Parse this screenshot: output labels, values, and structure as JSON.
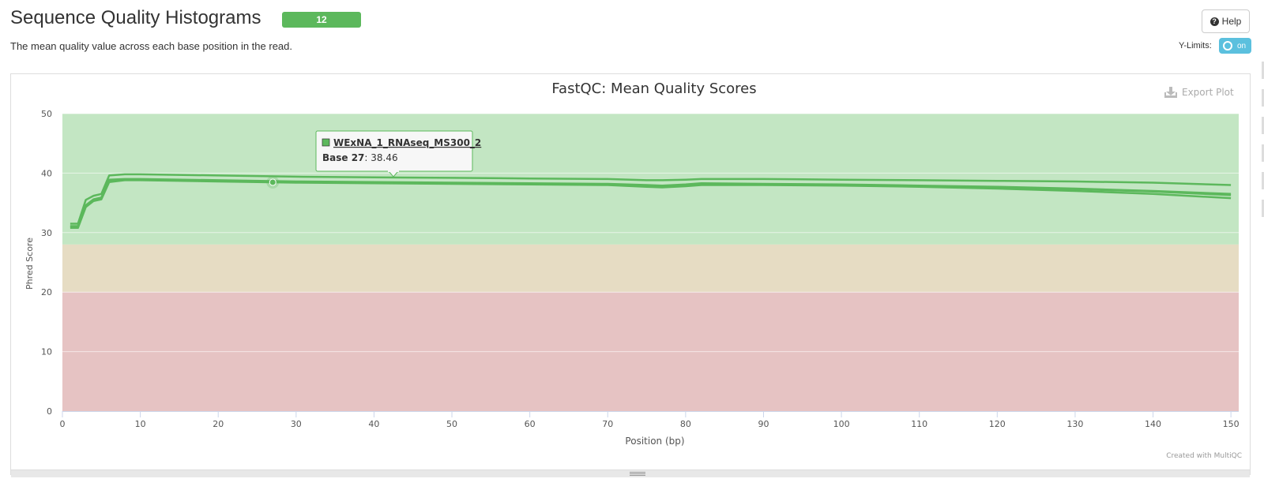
{
  "header": {
    "title": "Sequence Quality Histograms",
    "badge": "12",
    "description": "The mean quality value across each base position in the read.",
    "help_label": "Help",
    "ylimits_label": "Y-Limits:",
    "ylimits_toggle": "on"
  },
  "plot": {
    "export_label": "Export Plot",
    "credit": "Created with MultiQC"
  },
  "tooltip": {
    "sample": "WExNA_1_RNAseq_MS300_2",
    "base_label": "Base 27",
    "value_text": ": 38.46"
  },
  "colors": {
    "accent": "#5cb85c",
    "zone_good": "#c3e6c3",
    "zone_warn": "#e6dcc3",
    "zone_fail": "#e6c3c3",
    "toggle": "#5bc0de"
  },
  "chart_data": {
    "type": "line",
    "title": "FastQC: Mean Quality Scores",
    "xlabel": "Position (bp)",
    "ylabel": "Phred Score",
    "xlim": [
      0,
      151
    ],
    "ylim": [
      0,
      50
    ],
    "x_ticks": [
      0,
      10,
      20,
      30,
      40,
      50,
      60,
      70,
      80,
      90,
      100,
      110,
      120,
      130,
      140,
      150
    ],
    "y_ticks": [
      0,
      10,
      20,
      30,
      40,
      50
    ],
    "bands": [
      {
        "from": 28,
        "to": 50,
        "color": "#c3e6c3"
      },
      {
        "from": 20,
        "to": 28,
        "color": "#e6dcc3"
      },
      {
        "from": 0,
        "to": 20,
        "color": "#e6c3c3"
      }
    ],
    "highlight": {
      "x": 27,
      "y": 38.46
    },
    "series": [
      {
        "color": "#5cb85c",
        "x": [
          1,
          2,
          3,
          4,
          5,
          6,
          8,
          10,
          20,
          30,
          40,
          50,
          60,
          70,
          75,
          77,
          80,
          82,
          90,
          100,
          110,
          120,
          130,
          140,
          150
        ],
        "y": [
          31.5,
          31.5,
          35.5,
          36.2,
          36.5,
          39.6,
          39.8,
          39.8,
          39.6,
          39.4,
          39.3,
          39.2,
          39.1,
          39.0,
          38.8,
          38.8,
          38.9,
          39.0,
          39.0,
          38.9,
          38.8,
          38.7,
          38.6,
          38.4,
          38.0
        ]
      },
      {
        "color": "#5cb85c",
        "x": [
          1,
          2,
          3,
          4,
          5,
          6,
          8,
          10,
          20,
          30,
          40,
          50,
          60,
          70,
          75,
          77,
          80,
          82,
          90,
          100,
          110,
          120,
          130,
          140,
          150
        ],
        "y": [
          31.0,
          31.0,
          34.5,
          35.5,
          35.8,
          38.7,
          38.9,
          38.9,
          38.7,
          38.5,
          38.4,
          38.3,
          38.2,
          38.1,
          37.9,
          37.8,
          38.0,
          38.2,
          38.1,
          38.0,
          37.8,
          37.6,
          37.3,
          36.9,
          36.3
        ]
      },
      {
        "color": "#5cb85c",
        "x": [
          1,
          2,
          3,
          4,
          5,
          6,
          8,
          10,
          20,
          30,
          40,
          50,
          60,
          70,
          75,
          77,
          80,
          82,
          90,
          100,
          110,
          120,
          130,
          140,
          150
        ],
        "y": [
          30.8,
          30.8,
          34.3,
          35.3,
          35.6,
          38.5,
          38.8,
          38.8,
          38.6,
          38.4,
          38.3,
          38.2,
          38.1,
          38.0,
          37.7,
          37.6,
          37.8,
          38.0,
          38.0,
          37.9,
          37.7,
          37.4,
          37.0,
          36.5,
          35.8
        ]
      },
      {
        "color": "#5cb85c",
        "x": [
          1,
          2,
          3,
          4,
          5,
          6,
          8,
          10,
          20,
          30,
          40,
          50,
          60,
          70,
          75,
          77,
          80,
          82,
          90,
          100,
          110,
          120,
          130,
          140,
          150
        ],
        "y": [
          31.1,
          31.1,
          34.6,
          35.6,
          35.9,
          38.9,
          39.0,
          39.0,
          38.8,
          38.6,
          38.5,
          38.4,
          38.3,
          38.2,
          38.0,
          37.9,
          38.1,
          38.3,
          38.2,
          38.1,
          37.9,
          37.7,
          37.4,
          37.0,
          36.5
        ]
      }
    ]
  }
}
